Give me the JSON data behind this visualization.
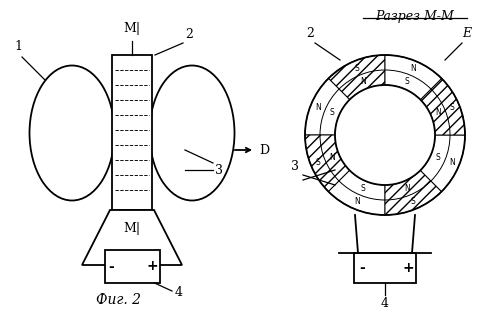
{
  "bg_color": "#ffffff",
  "title_text": "Разрез М-М",
  "fig_label": "Фиг. 2",
  "arrow_label": "D",
  "label_E": "E",
  "label_1": "1",
  "label_2_left": "2",
  "label_2_right": "2",
  "label_3_left": "3",
  "label_3_right": "3",
  "label_4_left": "4",
  "label_4_right": "4",
  "label_M_top": "М|",
  "label_M_bot": "М|",
  "minus_left": "-",
  "plus_left": "+",
  "minus_right": "-",
  "plus_right": "+"
}
